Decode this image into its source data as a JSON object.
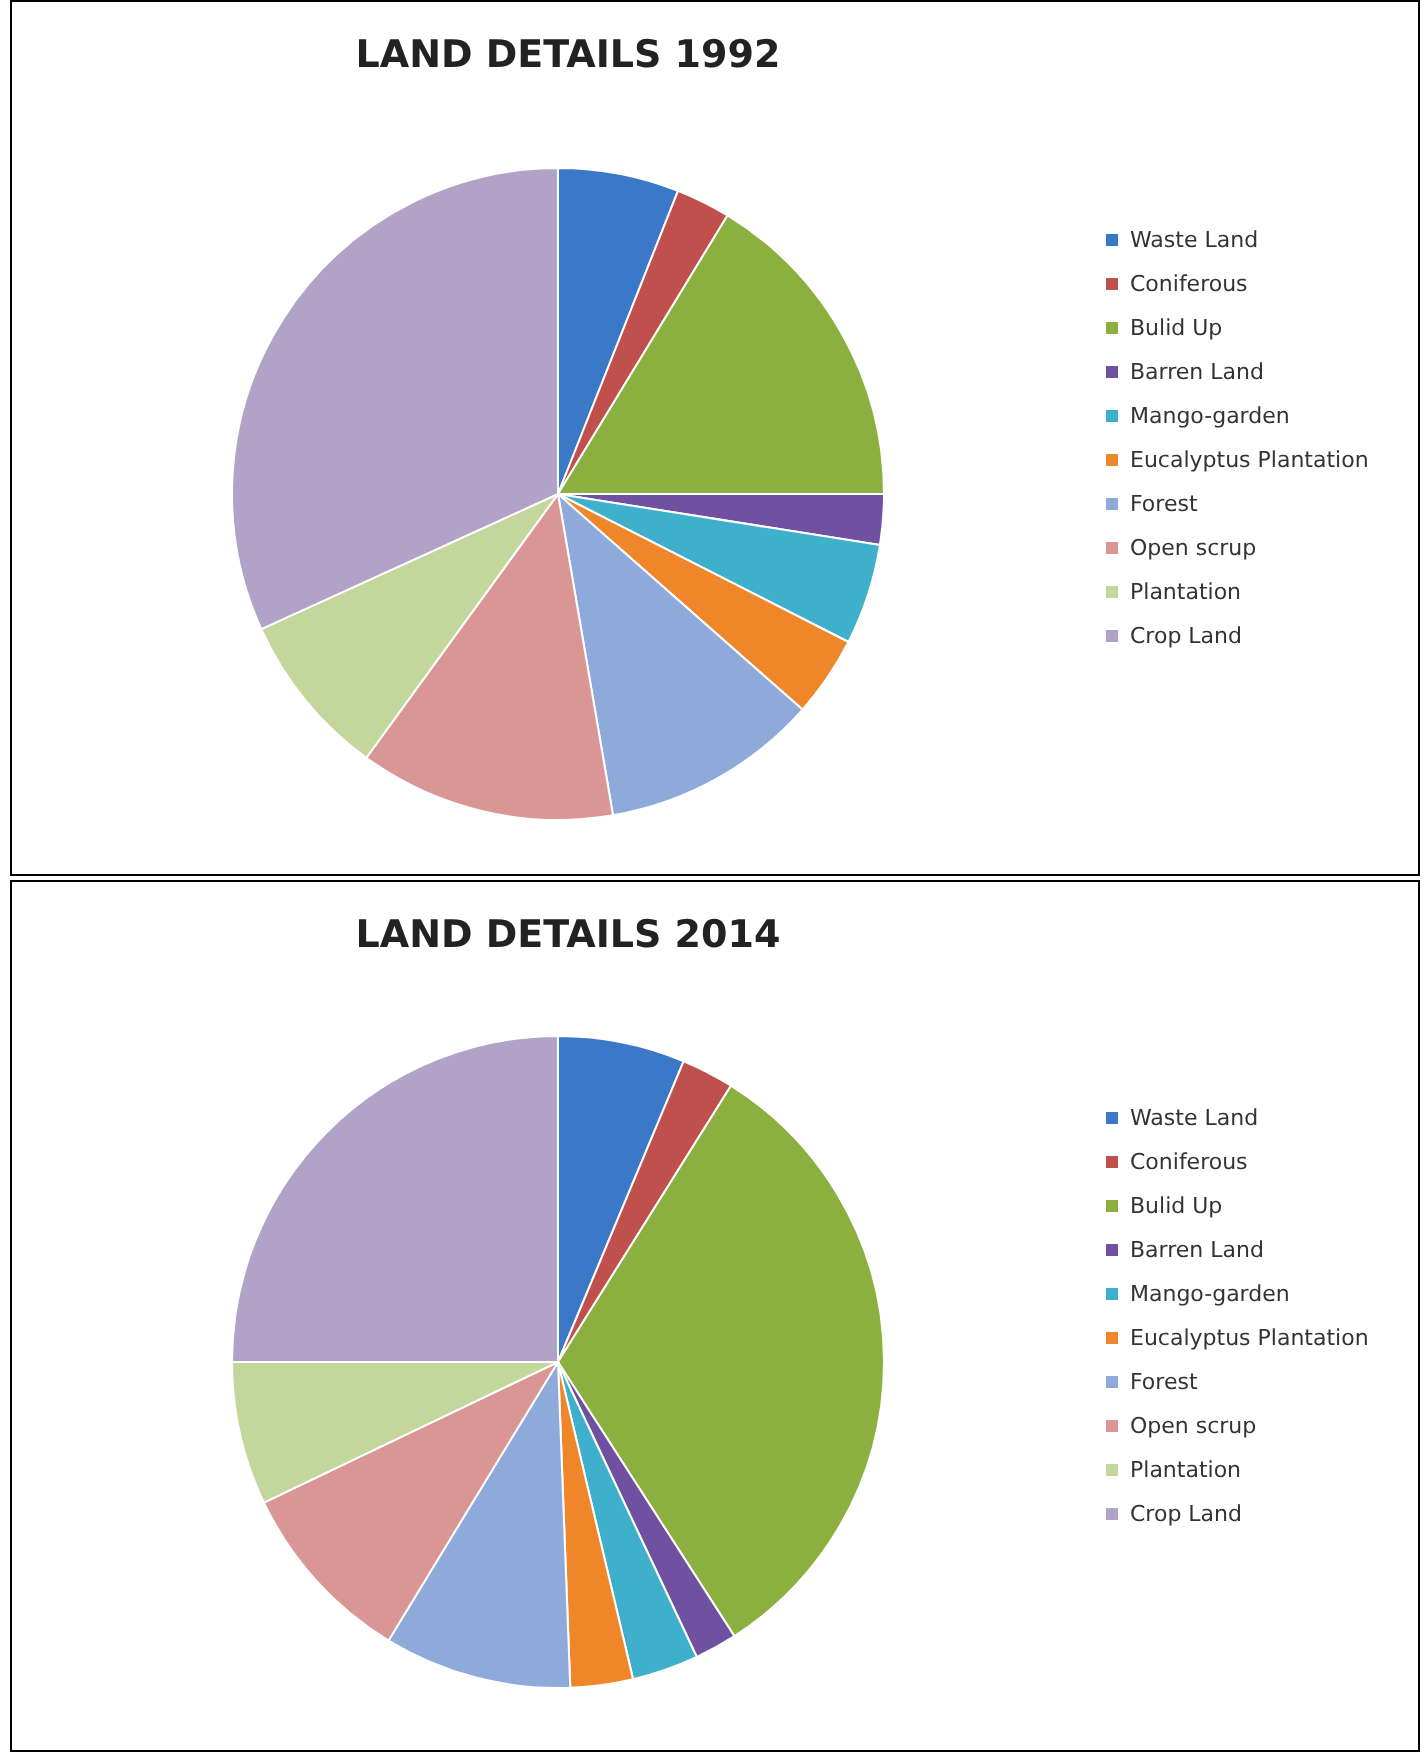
{
  "chart_data": [
    {
      "type": "pie",
      "title": "LAND DETAILS 1992",
      "legend": "right",
      "categories": [
        "Waste Land",
        "Coniferous",
        "Bulid Up",
        "Barren Land",
        "Mango-garden",
        "Eucalyptus Plantation",
        "Forest",
        "Open scrup",
        "Plantation",
        "Crop Land"
      ],
      "values": [
        6.0,
        2.7,
        16.3,
        2.5,
        5.0,
        4.0,
        10.8,
        12.7,
        8.2,
        31.8
      ],
      "colors": [
        "#3c78c8",
        "#c0504d",
        "#8bb040",
        "#7050a0",
        "#3fb0cc",
        "#f0862a",
        "#8eaadb",
        "#d99694",
        "#c3d69b",
        "#b3a2c7"
      ]
    },
    {
      "type": "pie",
      "title": "LAND DETAILS 2014",
      "legend": "right",
      "categories": [
        "Waste Land",
        "Coniferous",
        "Bulid Up",
        "Barren Land",
        "Mango-garden",
        "Eucalyptus Plantation",
        "Forest",
        "Open scrup",
        "Plantation",
        "Crop Land"
      ],
      "values": [
        6.3,
        2.6,
        32.0,
        2.1,
        3.3,
        3.1,
        9.3,
        9.2,
        7.1,
        25.0
      ],
      "colors": [
        "#3c78c8",
        "#c0504d",
        "#8bb040",
        "#7050a0",
        "#3fb0cc",
        "#f0862a",
        "#8eaadb",
        "#d99694",
        "#c3d69b",
        "#b3a2c7"
      ]
    }
  ]
}
